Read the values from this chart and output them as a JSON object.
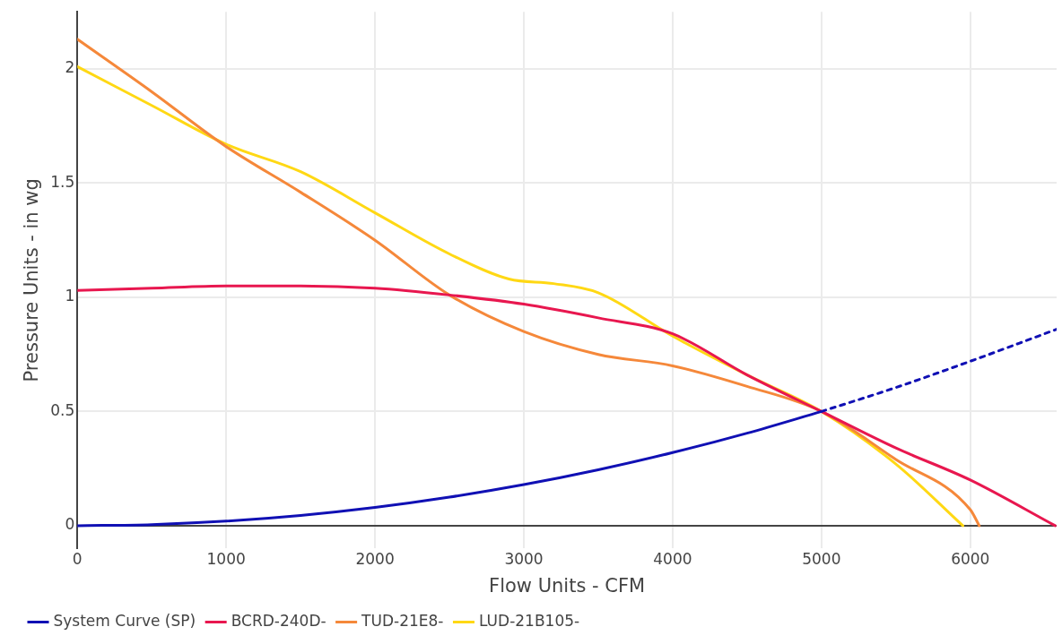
{
  "chart_data": {
    "type": "line",
    "xlabel": "Flow Units - CFM",
    "ylabel": "Pressure Units - in wg",
    "xlim": [
      0,
      6580
    ],
    "ylim": [
      -0.1,
      2.25
    ],
    "xticks": [
      0,
      1000,
      2000,
      3000,
      4000,
      5000,
      6000
    ],
    "yticks": [
      0,
      0.5,
      1,
      1.5,
      2
    ],
    "grid": true,
    "legend": "bottom",
    "marker": "none",
    "line_style": "solid",
    "series": [
      {
        "name": "System Curve (SP)",
        "color": "#1010b4",
        "x": [
          0,
          500,
          1000,
          1500,
          2000,
          2500,
          3000,
          3500,
          4000,
          4500,
          5000
        ],
        "values": [
          0,
          0.005,
          0.02,
          0.045,
          0.08,
          0.125,
          0.18,
          0.245,
          0.32,
          0.405,
          0.5
        ]
      },
      {
        "color": "#1010b4",
        "line_style": "dotted",
        "x": [
          5000,
          5500,
          6000,
          6580
        ],
        "values": [
          0.5,
          0.605,
          0.72,
          0.86
        ]
      },
      {
        "name": "BCRD-240D-",
        "color": "#e8174f",
        "x": [
          0,
          500,
          1000,
          1500,
          2000,
          2500,
          3000,
          3500,
          4000,
          4500,
          5000,
          5500,
          6000,
          6570
        ],
        "values": [
          1.03,
          1.04,
          1.05,
          1.05,
          1.04,
          1.01,
          0.97,
          0.91,
          0.84,
          0.66,
          0.5,
          0.34,
          0.2,
          0
        ]
      },
      {
        "name": "TUD-21E8-",
        "color": "#f5883a",
        "x": [
          0,
          500,
          1000,
          1500,
          2000,
          2500,
          3000,
          3500,
          4000,
          4500,
          5000,
          5500,
          6000,
          6060
        ],
        "values": [
          2.13,
          1.9,
          1.66,
          1.46,
          1.25,
          1.01,
          0.85,
          0.75,
          0.7,
          0.61,
          0.5,
          0.29,
          0.07,
          0
        ]
      },
      {
        "name": "LUD-21B105-",
        "color": "#ffd814",
        "x": [
          0,
          500,
          1000,
          1500,
          2000,
          2500,
          2900,
          3200,
          3500,
          4000,
          4500,
          5000,
          5500,
          5950
        ],
        "values": [
          2.01,
          1.84,
          1.67,
          1.55,
          1.37,
          1.19,
          1.08,
          1.06,
          1.02,
          0.83,
          0.66,
          0.5,
          0.27,
          0
        ]
      }
    ]
  }
}
